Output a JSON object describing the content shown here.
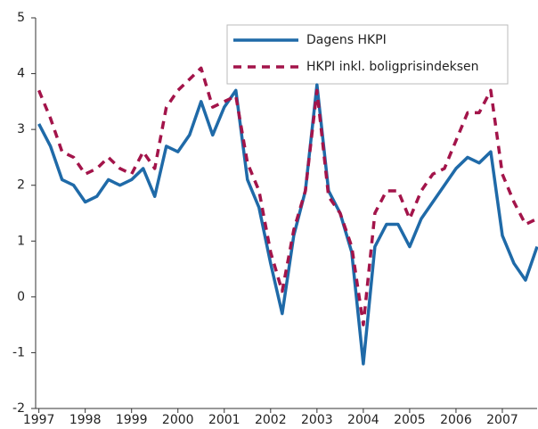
{
  "chart_data": {
    "type": "line",
    "x": [
      1997,
      1997.25,
      1997.5,
      1997.75,
      1998,
      1998.25,
      1998.5,
      1998.75,
      1999,
      1999.25,
      1999.5,
      1999.75,
      2000,
      2000.25,
      2000.5,
      2000.75,
      2001,
      2001.25,
      2001.5,
      2001.75,
      2002,
      2002.25,
      2002.5,
      2002.75,
      2003,
      2003.25,
      2003.5,
      2003.75,
      2004,
      2004.25,
      2004.5,
      2004.75,
      2005,
      2005.25,
      2005.5,
      2005.75,
      2006,
      2006.25,
      2006.5,
      2006.75,
      2007,
      2007.25,
      2007.5,
      2007.75
    ],
    "series": [
      {
        "name": "Dagens HKPI",
        "color": "#1f6aa8",
        "dashed": false,
        "values": [
          3.1,
          2.7,
          2.1,
          2.0,
          1.7,
          1.8,
          2.1,
          2.0,
          2.1,
          2.3,
          1.8,
          2.7,
          2.6,
          2.9,
          3.5,
          2.9,
          3.4,
          3.7,
          2.1,
          1.6,
          0.6,
          -0.3,
          1.1,
          1.9,
          3.8,
          1.9,
          1.5,
          0.8,
          -1.2,
          0.9,
          1.3,
          1.3,
          0.9,
          1.4,
          1.7,
          2.0,
          2.3,
          2.5,
          2.4,
          2.6,
          1.1,
          0.6,
          0.3,
          0.9
        ]
      },
      {
        "name": "HKPI inkl. boligprisindeksen",
        "color": "#a3144a",
        "dashed": true,
        "values": [
          3.7,
          3.2,
          2.6,
          2.5,
          2.2,
          2.3,
          2.5,
          2.3,
          2.2,
          2.6,
          2.3,
          3.4,
          3.7,
          3.9,
          4.1,
          3.4,
          3.5,
          3.6,
          2.4,
          1.9,
          0.8,
          0.1,
          1.2,
          1.9,
          3.7,
          1.8,
          1.5,
          0.9,
          -0.5,
          1.5,
          1.9,
          1.9,
          1.4,
          1.9,
          2.2,
          2.3,
          2.8,
          3.3,
          3.3,
          3.7,
          2.2,
          1.7,
          1.3,
          1.4
        ]
      }
    ],
    "xlim": [
      1996.93,
      2007.75
    ],
    "xticks": [
      1997,
      1998,
      1999,
      2000,
      2001,
      2002,
      2003,
      2004,
      2005,
      2006,
      2007
    ],
    "ylim": [
      -2,
      5
    ],
    "yticks": [
      -2,
      -1,
      0,
      1,
      2,
      3,
      4,
      5
    ],
    "legend": "top-right"
  }
}
